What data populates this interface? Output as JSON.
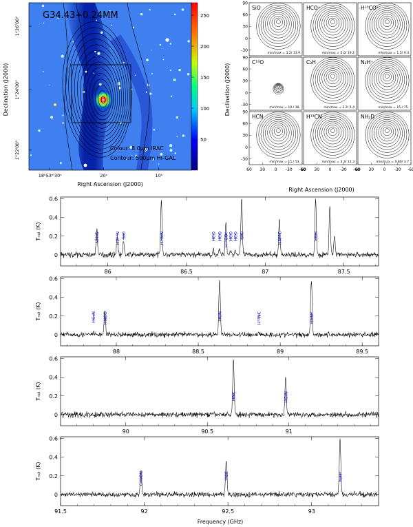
{
  "image_panel": {
    "title": "G34.43+0.24MM",
    "colour_label": "Colour: 8.0μm IRAC",
    "contour_label": "Contour: 500μm Hi-GAL",
    "ylabel": "Declination (J2000)",
    "xlabel": "Right Ascension (J2000)",
    "yticks": [
      {
        "label": "1°26'00\"",
        "frac": 0.14
      },
      {
        "label": "1°24'00\"",
        "frac": 0.52
      },
      {
        "label": "1°22'00\"",
        "frac": 0.88
      }
    ],
    "xticks": [
      {
        "label": "18ʰ53ᵐ30ˢ",
        "frac": 0.13
      },
      {
        "label": "20ˢ",
        "frac": 0.46
      },
      {
        "label": "10ˢ",
        "frac": 0.8
      }
    ],
    "colorbar_ticks": [
      250,
      200,
      150,
      100,
      50
    ]
  },
  "maps": {
    "ylabel": "Declination (J2000)",
    "xlabel": "Right Ascension (J2000)",
    "yticks": [
      90,
      60,
      30,
      0,
      -30
    ],
    "xticks": [
      60,
      30,
      0,
      -30,
      -60
    ],
    "panels": [
      {
        "name": "SiO",
        "minmax": "min/max =   3.2/ 13.9"
      },
      {
        "name": "HCO⁺",
        "minmax": "min/max =   5.0/ 19.2"
      },
      {
        "name": "H¹³CO⁺",
        "minmax": "min/max =   1.5/  9.3"
      },
      {
        "name": "C¹⁸O",
        "minmax": "min/max =   10./  18."
      },
      {
        "name": "C₂H",
        "minmax": "min/max =   2.2/  5.4"
      },
      {
        "name": "N₂H⁺",
        "minmax": "min/max =   15./  75."
      },
      {
        "name": "HCN",
        "minmax": "min/max =   15./  53."
      },
      {
        "name": "H¹³CN",
        "minmax": "min/max =   3.3/ 12.3"
      },
      {
        "name": "NH₂D",
        "minmax": "min/max =  0.80/  3.7"
      }
    ]
  },
  "spectra": {
    "ylabel": "Tₘᵦ (K)",
    "xlabel": "Frequency (GHz)",
    "yticks": [
      0.6,
      0.4,
      0.2,
      0
    ],
    "ylim": [
      -0.12,
      0.62
    ]
  },
  "chart_data": [
    {
      "type": "line",
      "xlim": [
        85.7,
        87.72
      ],
      "xticks": [
        86,
        86.5,
        87,
        87.5
      ],
      "lines": [
        {
          "label": "NH₂D",
          "x": 85.93,
          "peak": 0.28
        },
        {
          "label": "HC¹⁵N",
          "x": 86.06,
          "peak": 0.2
        },
        {
          "label": "SiO",
          "x": 86.1,
          "peak": 0.13
        },
        {
          "label": "H¹³CN",
          "x": 86.34,
          "peak": 0.6
        },
        {
          "label": "HCO",
          "x": 86.67,
          "peak": 0.05
        },
        {
          "label": "HCO",
          "x": 86.71,
          "peak": 0.05
        },
        {
          "label": "H¹³CO⁺",
          "x": 86.75,
          "peak": 0.35
        },
        {
          "label": "HCO",
          "x": 86.78,
          "peak": 0.05
        },
        {
          "label": "HCO",
          "x": 86.81,
          "peak": 0.05
        },
        {
          "label": "SiO",
          "x": 86.85,
          "peak": 0.6
        },
        {
          "label": "HN¹³C",
          "x": 87.09,
          "peak": 0.38
        },
        {
          "label": "CCH",
          "x": 87.32,
          "peak": 0.6
        }
      ],
      "extra_peaks": [
        [
          87.41,
          0.52
        ],
        [
          87.44,
          0.2
        ]
      ]
    },
    {
      "type": "line",
      "xlim": [
        87.66,
        89.6
      ],
      "xticks": [
        88,
        88.5,
        89,
        89.5
      ],
      "lines": [
        {
          "label": "HC₃N",
          "x": 87.86,
          "peak": 0.02
        },
        {
          "label": "HNCO",
          "x": 87.93,
          "peak": 0.25
        },
        {
          "label": "HCN",
          "x": 88.63,
          "peak": 0.6
        },
        {
          "label": "H¹⁵NC",
          "x": 88.87,
          "peak": 0.02
        },
        {
          "label": "HCO⁺",
          "x": 89.19,
          "peak": 0.6
        }
      ],
      "extra_peaks": []
    },
    {
      "type": "line",
      "xlim": [
        89.6,
        91.55
      ],
      "xticks": [
        90,
        90.5,
        91
      ],
      "lines": [
        {
          "label": "HNC",
          "x": 90.66,
          "peak": 0.6
        },
        {
          "label": "HC₃N",
          "x": 90.98,
          "peak": 0.38
        }
      ],
      "extra_peaks": []
    },
    {
      "type": "line",
      "xlim": [
        91.5,
        93.4
      ],
      "xticks": [
        91.5,
        92,
        92.5,
        93
      ],
      "lines": [
        {
          "label": "CH₃CN",
          "x": 91.98,
          "peak": 0.24
        },
        {
          "label": "¹³CS",
          "x": 92.49,
          "peak": 0.36
        },
        {
          "label": "N₂H⁺",
          "x": 93.17,
          "peak": 0.6
        }
      ],
      "extra_peaks": []
    }
  ]
}
